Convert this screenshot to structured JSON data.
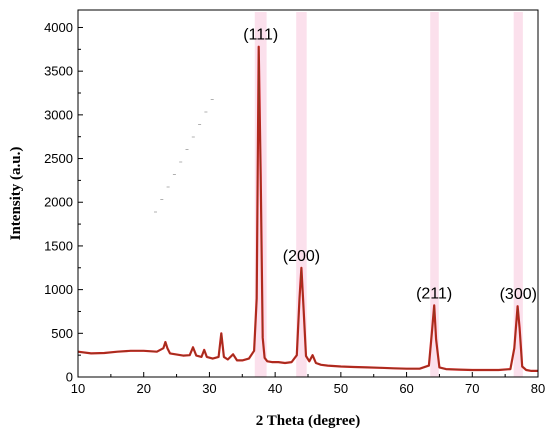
{
  "chart_data": {
    "type": "line",
    "title": "",
    "xlabel": "2 Theta (degree)",
    "ylabel": "Intensity (a.u.)",
    "xlim": [
      10,
      80
    ],
    "ylim": [
      0,
      4200
    ],
    "xticks": [
      10,
      20,
      30,
      40,
      50,
      60,
      70,
      80
    ],
    "yticks": [
      0,
      500,
      1000,
      1500,
      2000,
      2500,
      3000,
      3500,
      4000
    ],
    "grid": false,
    "legend": "none",
    "colors": {
      "line": "#cc1f1f",
      "line_dark": "#8b3a1e",
      "band": "#f4a6c8"
    },
    "series": [
      {
        "x": [
          10,
          12,
          14,
          16,
          18,
          20,
          22,
          23,
          23.3,
          23.6,
          24,
          26,
          27,
          27.5,
          28,
          28.8,
          29.2,
          29.6,
          30.5,
          31.4,
          31.8,
          32.2,
          32.8,
          33.6,
          34.2,
          35,
          36,
          36.8,
          37.2,
          37.5,
          37.8,
          38.1,
          38.4,
          38.8,
          39.5,
          40.5,
          41.5,
          42.5,
          43.3,
          43.7,
          44,
          44.3,
          44.7,
          45.2,
          45.7,
          46.2,
          47,
          48,
          50,
          52,
          54,
          56,
          58,
          60,
          62,
          63.4,
          63.9,
          64.2,
          64.5,
          65,
          66,
          68,
          70,
          72,
          74,
          75.8,
          76.4,
          76.9,
          77.2,
          77.6,
          78.2,
          79,
          80
        ],
        "y": [
          290,
          270,
          275,
          290,
          300,
          300,
          290,
          330,
          400,
          330,
          270,
          245,
          250,
          340,
          245,
          230,
          310,
          230,
          210,
          230,
          500,
          230,
          200,
          260,
          190,
          190,
          210,
          300,
          900,
          3780,
          2300,
          450,
          220,
          180,
          170,
          170,
          160,
          170,
          250,
          900,
          1250,
          820,
          240,
          180,
          250,
          160,
          140,
          130,
          120,
          115,
          110,
          105,
          100,
          95,
          95,
          130,
          550,
          820,
          430,
          110,
          90,
          85,
          80,
          80,
          80,
          90,
          330,
          810,
          560,
          120,
          80,
          70,
          70
        ]
      }
    ],
    "annotations": [
      {
        "text": "(111)",
        "x": 37.8,
        "y": 3780
      },
      {
        "text": "(200)",
        "x": 44.0,
        "y": 1250
      },
      {
        "text": "(211)",
        "x": 64.2,
        "y": 820
      },
      {
        "text": "(300)",
        "x": 77.0,
        "y": 810
      }
    ]
  }
}
